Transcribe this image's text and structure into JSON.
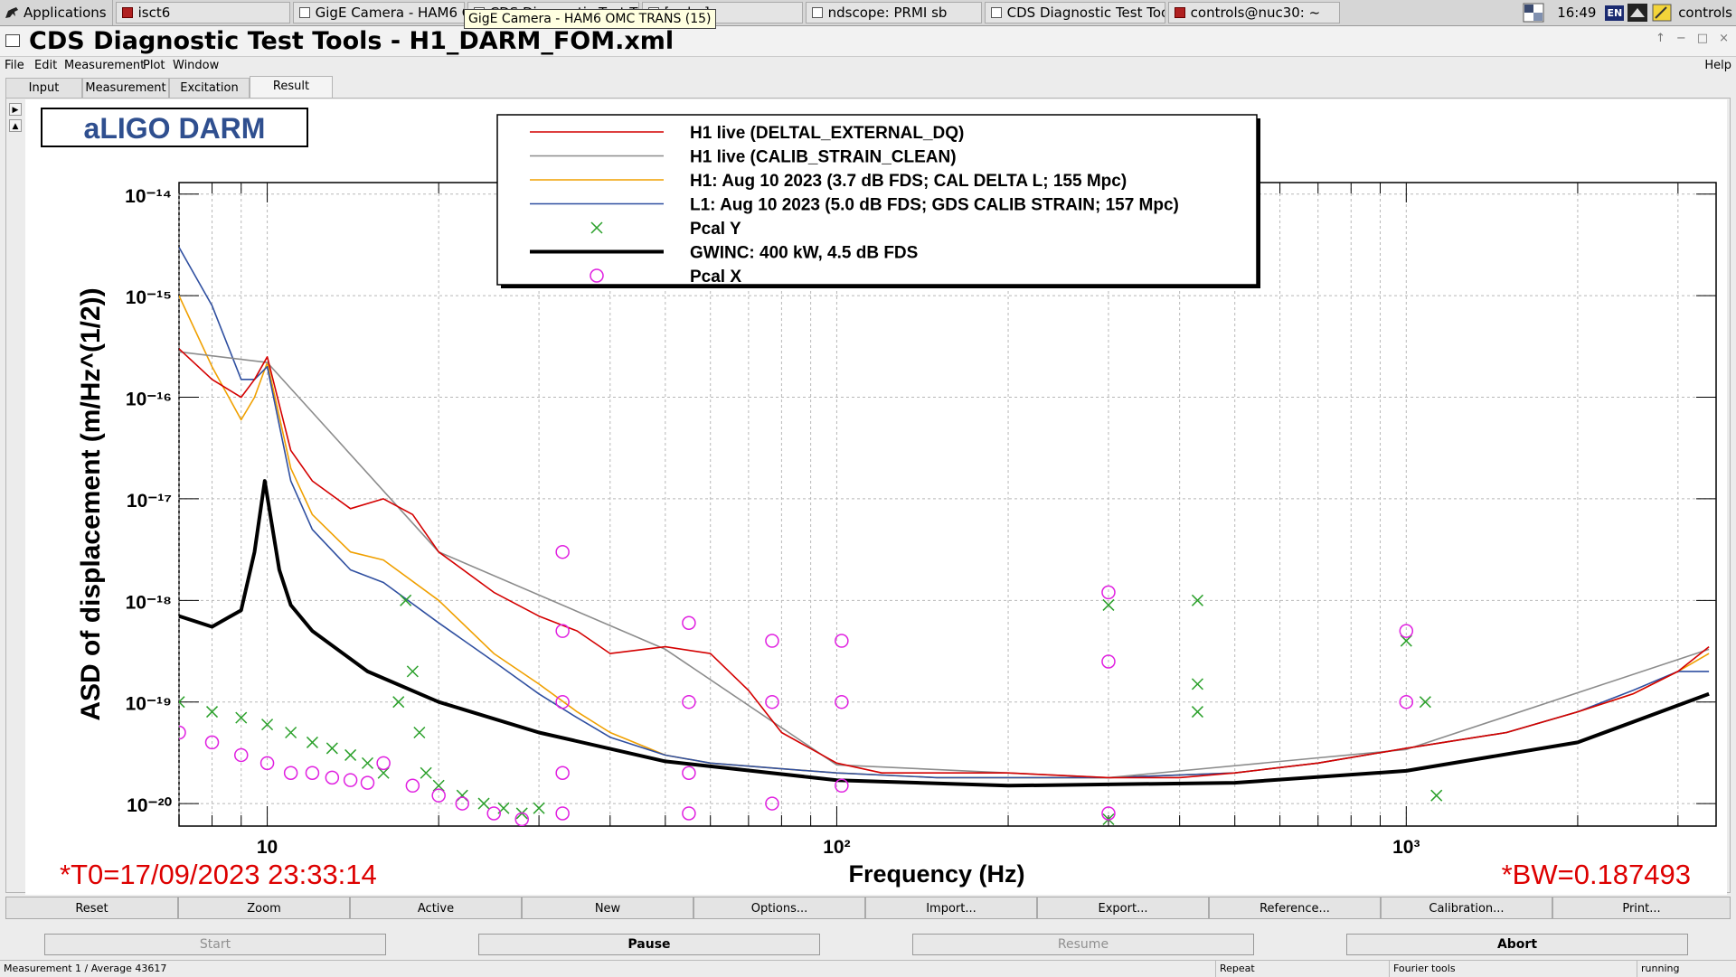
{
  "taskbar": {
    "apps_label": "Applications",
    "tasks": [
      {
        "label": "isct6"
      },
      {
        "label": "GigE Camera - HAM6 O..."
      },
      {
        "label": "CDS Diagnostic Test T..."
      },
      {
        "label": "[...dm]"
      },
      {
        "label": "ndscope: PRMI sb"
      },
      {
        "label": "CDS Diagnostic Test Too..."
      },
      {
        "label": "controls@nuc30: ~"
      }
    ],
    "tooltip": "GigE Camera - HAM6 OMC TRANS (15)",
    "clock": "16:49",
    "keyboard_layout": "EN",
    "user": "controls"
  },
  "window": {
    "title": "CDS Diagnostic Test Tools - H1_DARM_FOM.xml",
    "controls": [
      "↑",
      "−",
      "□",
      "×"
    ]
  },
  "menu": {
    "items": [
      "File",
      "Edit",
      "Measurement",
      "Plot",
      "Window"
    ],
    "help": "Help"
  },
  "tabs": [
    "Input",
    "Measurement",
    "Excitation",
    "Result"
  ],
  "active_tab": "Result",
  "plot": {
    "logo": "aLIGO DARM",
    "t0": "*T0=17/09/2023 23:33:14",
    "bw": "*BW=0.187493"
  },
  "chart_data": {
    "type": "line",
    "title": "",
    "xlabel": "Frequency (Hz)",
    "ylabel": "ASD of displacement (m/Hz^(1/2))",
    "xscale": "log",
    "yscale": "log",
    "xlim": [
      7,
      3500
    ],
    "ylim": [
      6e-21,
      1.3e-14
    ],
    "x_ticks": [
      10,
      100,
      1000
    ],
    "x_tick_labels": [
      "10",
      "10²",
      "10³"
    ],
    "y_ticks": [
      1e-20,
      1e-19,
      1e-18,
      1e-17,
      1e-16,
      1e-15,
      1e-14
    ],
    "y_tick_labels": [
      "10⁻²⁰",
      "10⁻¹⁹",
      "10⁻¹⁸",
      "10⁻¹⁷",
      "10⁻¹⁶",
      "10⁻¹⁵",
      "10⁻¹⁴"
    ],
    "grid": true,
    "legend_position": "top-center",
    "series": [
      {
        "name": "H1 live (DELTAL_EXTERNAL_DQ)",
        "color": "#d40000",
        "style": "line",
        "x": [
          7,
          8,
          9,
          9.5,
          10,
          11,
          12,
          14,
          16,
          18,
          20,
          25,
          30,
          35,
          40,
          50,
          60,
          70,
          80,
          100,
          120,
          150,
          200,
          300,
          400,
          500,
          700,
          1000,
          1500,
          2000,
          2500,
          3000,
          3400
        ],
        "y": [
          3e-16,
          1.5e-16,
          1e-16,
          1.5e-16,
          2.5e-16,
          3e-17,
          1.5e-17,
          8e-18,
          1e-17,
          7e-18,
          3e-18,
          1.2e-18,
          7e-19,
          5e-19,
          3e-19,
          3.5e-19,
          3e-19,
          1.3e-19,
          5e-20,
          2.5e-20,
          2e-20,
          2e-20,
          2e-20,
          1.8e-20,
          1.8e-20,
          2e-20,
          2.5e-20,
          3.5e-20,
          5e-20,
          8e-20,
          1.2e-19,
          2e-19,
          3.5e-19
        ]
      },
      {
        "name": "H1 live (CALIB_STRAIN_CLEAN)",
        "color": "#8c8c8c",
        "style": "line",
        "x": [
          7,
          10,
          20,
          50,
          100,
          300,
          1000,
          3400
        ],
        "y": [
          2.8e-16,
          2.2e-16,
          3e-18,
          3.3e-19,
          2.4e-20,
          1.8e-20,
          3.4e-20,
          3.3e-19
        ]
      },
      {
        "name": "H1: Aug 10 2023 (3.7 dB FDS; CAL DELTA L; 155 Mpc)",
        "color": "#f0a000",
        "style": "line",
        "x": [
          7,
          8,
          9,
          9.5,
          10,
          11,
          12,
          14,
          16,
          20,
          25,
          30,
          35,
          40,
          50,
          60,
          80,
          100,
          150,
          200,
          300,
          500,
          700,
          1000,
          1500,
          2000,
          2500,
          3000,
          3400
        ],
        "y": [
          1e-15,
          2e-16,
          6e-17,
          1e-16,
          2.2e-16,
          2e-17,
          7e-18,
          3e-18,
          2.5e-18,
          1e-18,
          3e-19,
          1.5e-19,
          8e-20,
          5e-20,
          3e-20,
          2.5e-20,
          2.2e-20,
          2e-20,
          1.8e-20,
          1.8e-20,
          1.8e-20,
          2e-20,
          2.5e-20,
          3.5e-20,
          5e-20,
          8e-20,
          1.2e-19,
          2e-19,
          3e-19
        ]
      },
      {
        "name": "L1: Aug 10 2023 (5.0 dB FDS; GDS CALIB STRAIN; 157 Mpc)",
        "color": "#2f4fa0",
        "style": "line",
        "x": [
          7,
          8,
          9,
          9.5,
          10,
          11,
          12,
          14,
          16,
          20,
          25,
          30,
          35,
          40,
          50,
          60,
          80,
          100,
          150,
          200,
          300,
          500,
          700,
          1000,
          1500,
          2000,
          2500,
          3000,
          3400
        ],
        "y": [
          3e-15,
          8e-16,
          1.5e-16,
          1.5e-16,
          2e-16,
          1.5e-17,
          5e-18,
          2e-18,
          1.5e-18,
          6e-19,
          2.5e-19,
          1.2e-19,
          7e-20,
          4.5e-20,
          3e-20,
          2.5e-20,
          2.2e-20,
          2e-20,
          1.8e-20,
          1.8e-20,
          1.8e-20,
          2e-20,
          2.5e-20,
          3.5e-20,
          5e-20,
          8e-20,
          1.3e-19,
          2e-19,
          2e-19
        ]
      },
      {
        "name": "Pcal Y",
        "color": "#2aa02a",
        "style": "x-markers",
        "x": [
          7,
          8,
          9,
          10,
          11,
          12,
          13,
          14,
          15,
          16,
          17,
          17.5,
          18,
          18.5,
          19,
          20,
          22,
          24,
          26,
          28,
          30,
          300,
          300,
          430,
          430,
          430,
          1000,
          1080,
          1130
        ],
        "y": [
          1e-19,
          8e-20,
          7e-20,
          6e-20,
          5e-20,
          4e-20,
          3.5e-20,
          3e-20,
          2.5e-20,
          2e-20,
          1e-19,
          1e-18,
          2e-19,
          5e-20,
          2e-20,
          1.5e-20,
          1.2e-20,
          1e-20,
          9e-21,
          8e-21,
          9e-21,
          9e-19,
          7e-21,
          1e-18,
          1.5e-19,
          8e-20,
          4e-19,
          1e-19,
          1.2e-20
        ]
      },
      {
        "name": "GWINC: 400 kW, 4.5 dB FDS",
        "color": "#000000",
        "style": "thick-line",
        "x": [
          7,
          8,
          9,
          9.5,
          9.9,
          10.5,
          11,
          12,
          15,
          20,
          30,
          50,
          100,
          200,
          500,
          1000,
          2000,
          3400
        ],
        "y": [
          7e-19,
          5.5e-19,
          8e-19,
          3e-18,
          1.5e-17,
          2e-18,
          9e-19,
          5e-19,
          2e-19,
          1e-19,
          5e-20,
          2.6e-20,
          1.7e-20,
          1.5e-20,
          1.6e-20,
          2.1e-20,
          4e-20,
          1.2e-19
        ]
      },
      {
        "name": "Pcal X",
        "color": "#e020e0",
        "style": "o-markers",
        "x": [
          7,
          8,
          9,
          10,
          11,
          12,
          13,
          14,
          15,
          16,
          18,
          20,
          22,
          25,
          28,
          33,
          33,
          33,
          33,
          33,
          55,
          55,
          55,
          55,
          77,
          77,
          77,
          102,
          102,
          102,
          300,
          300,
          300,
          1000,
          1000
        ],
        "y": [
          5e-20,
          4e-20,
          3e-20,
          2.5e-20,
          2e-20,
          2e-20,
          1.8e-20,
          1.7e-20,
          1.6e-20,
          2.5e-20,
          1.5e-20,
          1.2e-20,
          1e-20,
          8e-21,
          7e-21,
          3e-18,
          5e-19,
          1e-19,
          2e-20,
          8e-21,
          6e-19,
          1e-19,
          2e-20,
          8e-21,
          4e-19,
          1e-19,
          1e-20,
          4e-19,
          1e-19,
          1.5e-20,
          1.2e-18,
          2.5e-19,
          8e-21,
          5e-19,
          1e-19
        ]
      }
    ]
  },
  "buttons_row1": [
    "Reset",
    "Zoom",
    "Active",
    "New",
    "Options...",
    "Import...",
    "Export...",
    "Reference...",
    "Calibration...",
    "Print..."
  ],
  "buttons_row2": [
    {
      "label": "Start",
      "disabled": true
    },
    {
      "label": "Pause",
      "disabled": false
    },
    {
      "label": "Resume",
      "disabled": true
    },
    {
      "label": "Abort",
      "disabled": false
    }
  ],
  "status": {
    "measurement": "Measurement 1 / Average 43617",
    "mode": "Repeat",
    "tool": "Fourier tools",
    "state": "running"
  }
}
